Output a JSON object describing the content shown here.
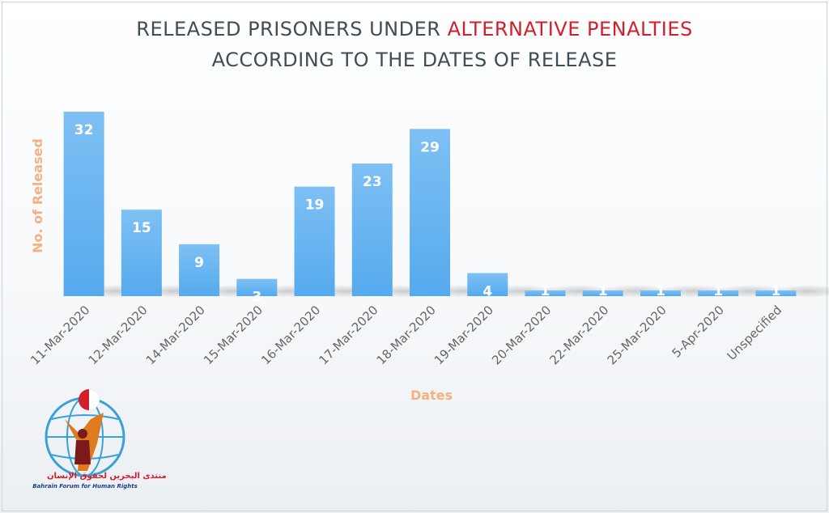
{
  "title": {
    "line1_prefix": "RELEASED PRISONERS UNDER ",
    "line1_accent": "ALTERNATIVE PENALTIES",
    "line2": "ACCORDING TO THE DATES OF RELEASE"
  },
  "logo": {
    "arabic": "منتدى البحرين لحقوق الإنسان",
    "english": "Bahrain Forum for Human Rights"
  },
  "colors": {
    "bar": "#55aaee",
    "bar_top": "#7ec0f4",
    "axis_label": "#f4b183",
    "tick": "#666666",
    "title_accent": "#d11f2c",
    "title_text": "#3f4d57"
  },
  "chart_data": {
    "type": "bar",
    "title": "RELEASED PRISONERS UNDER ALTERNATIVE PENALTIES ACCORDING TO THE DATES OF RELEASE",
    "xlabel": "Dates",
    "ylabel": "No. of Released",
    "categories": [
      "11-Mar-2020",
      "12-Mar-2020",
      "14-Mar-2020",
      "15-Mar-2020",
      "16-Mar-2020",
      "17-Mar-2020",
      "18-Mar-2020",
      "19-Mar-2020",
      "20-Mar-2020",
      "22-Mar-2020",
      "25-Mar-2020",
      "5-Apr-2020",
      "Unspecified"
    ],
    "values": [
      32,
      15,
      9,
      3,
      19,
      23,
      29,
      4,
      1,
      1,
      1,
      1,
      1
    ],
    "ylim": [
      0,
      32
    ],
    "data_labels": true,
    "grid": false,
    "legend": "none"
  }
}
